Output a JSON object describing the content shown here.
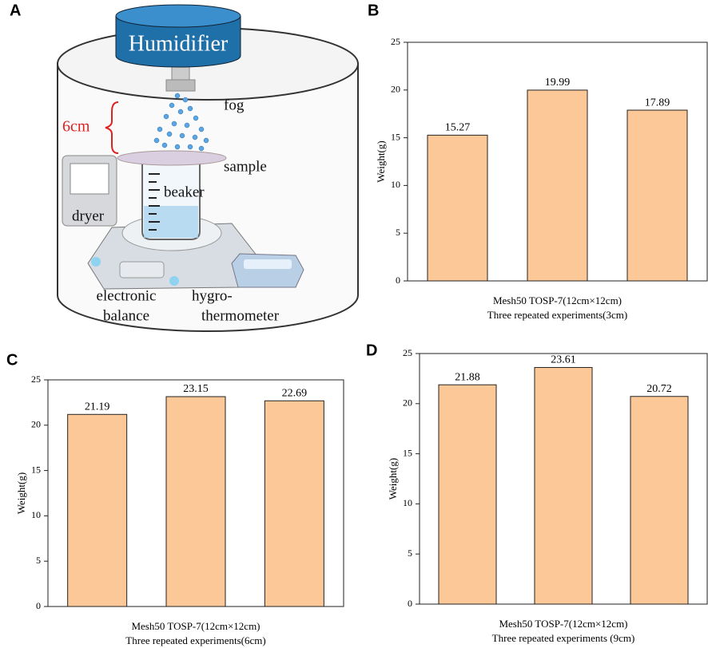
{
  "panel_labels": [
    "A",
    "B",
    "C",
    "D"
  ],
  "diagram": {
    "humidifier": "Humidifier",
    "fog": "fog",
    "distance": "6cm",
    "sample": "sample",
    "beaker": "beaker",
    "dryer": "dryer",
    "balance": [
      "electronic",
      "balance"
    ],
    "hygrothermometer": [
      "hygro-",
      "thermometer"
    ]
  },
  "chart_data": [
    {
      "type": "bar",
      "categories": [
        null,
        null,
        null
      ],
      "values": [
        15.27,
        19.99,
        17.89
      ],
      "color": "#fdc897",
      "y_label": "Weight(g)",
      "x_label": [
        "Mesh50 TOSP-7(12cm×12cm)",
        "Three repeated experiments(3cm)"
      ],
      "ylim": [
        0,
        25
      ],
      "yticks": [
        0,
        5,
        10,
        15,
        20,
        25
      ]
    },
    {
      "type": "bar",
      "categories": [
        null,
        null,
        null
      ],
      "values": [
        21.19,
        23.15,
        22.69
      ],
      "color": "#fdc897",
      "y_label": "Weight(g)",
      "x_label": [
        "Mesh50 TOSP-7(12cm×12cm)",
        "Three repeated experiments(6cm)"
      ],
      "ylim": [
        0,
        25
      ],
      "yticks": [
        0,
        5,
        10,
        15,
        20,
        25
      ]
    },
    {
      "type": "bar",
      "categories": [
        null,
        null,
        null
      ],
      "values": [
        21.88,
        23.61,
        20.72
      ],
      "color": "#fdc897",
      "y_label": "Weight(g)",
      "x_label": [
        "Mesh50 TOSP-7(12cm×12cm)",
        "Three repeated experiments (9cm)"
      ],
      "ylim": [
        0,
        25
      ],
      "yticks": [
        0,
        5,
        10,
        15,
        20,
        25
      ]
    }
  ]
}
